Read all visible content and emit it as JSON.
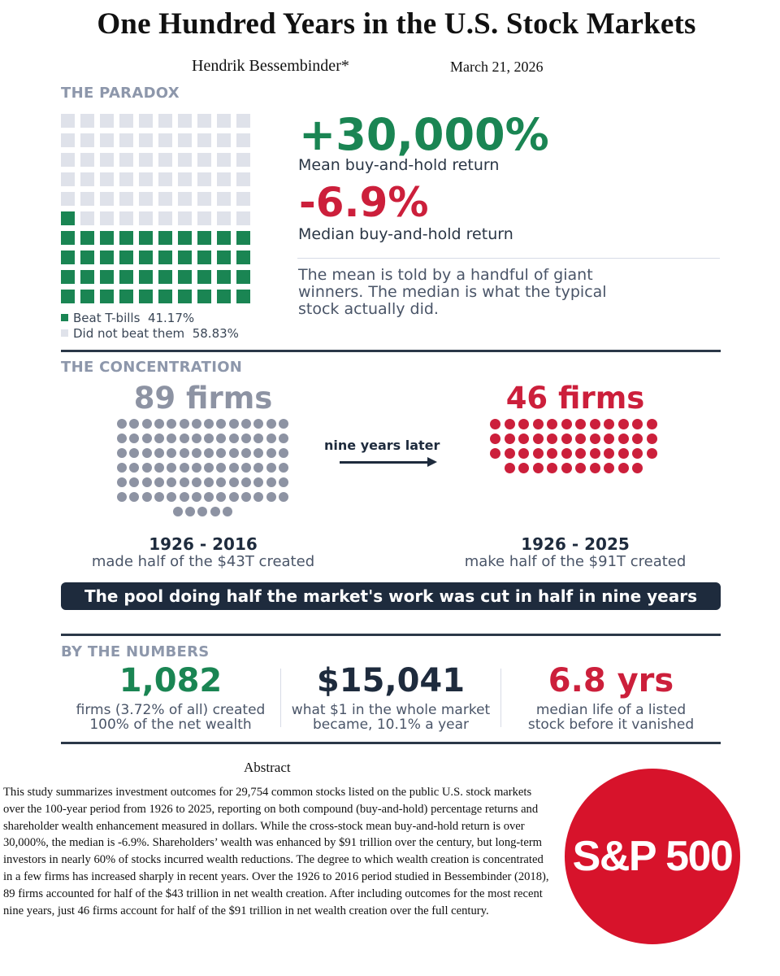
{
  "header": {
    "title": "One Hundred Years in the U.S. Stock Markets",
    "author": "Hendrik Bessembinder*",
    "date": "March 21, 2026"
  },
  "paradox": {
    "section_label": "THE PARADOX",
    "waffle": {
      "total_cells": 100,
      "filled_cells": 41,
      "filled_color": "#1a8553",
      "empty_color": "#dfe2ea"
    },
    "legend": [
      {
        "label": "Beat T-bills",
        "value": "41.17%",
        "color": "#1a8553"
      },
      {
        "label": "Did not beat them",
        "value": "58.83%",
        "color": "#dfe2ea"
      }
    ],
    "mean_value": "+30,000%",
    "mean_label": "Mean buy-and-hold return",
    "median_value": "-6.9%",
    "median_label": "Median buy-and-hold return",
    "note": "The mean is told by a handful of giant winners. The median is what the typical stock actually did."
  },
  "concentration": {
    "section_label": "THE CONCENTRATION",
    "left": {
      "title": "89 firms",
      "dot_count": 89,
      "color": "#8d93a3",
      "period": "1926 - 2016",
      "caption": "made half of the $43T created"
    },
    "arrow_label": "nine years later",
    "right": {
      "title": "46 firms",
      "dot_count": 46,
      "color": "#cc1f3b",
      "period": "1926 - 2025",
      "caption": "make half of the $91T created"
    },
    "banner": "The pool doing half the market's work was cut in half in nine years"
  },
  "numbers": {
    "section_label": "BY THE NUMBERS",
    "items": [
      {
        "value": "1,082",
        "line1": "firms (3.72% of all) created",
        "line2": "100% of the net wealth",
        "color": "#1a8553"
      },
      {
        "value": "$15,041",
        "line1": "what $1 in the whole market",
        "line2": "became, 10.1% a year",
        "color": "#1e2b3d"
      },
      {
        "value": "6.8 yrs",
        "line1": "median life of a listed",
        "line2": "stock before it vanished",
        "color": "#cc1f3b"
      }
    ]
  },
  "abstract": {
    "heading": "Abstract",
    "text": "This study summarizes investment outcomes for 29,754 common stocks listed on the public U.S. stock markets over the 100-year period from 1926 to 2025, reporting on both compound (buy-and-hold) percentage returns and shareholder wealth enhancement measured in dollars.  While the cross-stock mean buy-and-hold return is over 30,000%, the median is -6.9%.  Shareholders’ wealth was enhanced by $91 trillion over the century, but long-term investors in nearly 60% of stocks incurred wealth reductions.  The degree to which wealth creation is concentrated in a few firms has increased sharply in recent years.  Over the 1926 to 2016 period studied in Bessembinder (2018), 89 firms accounted for half of the $43 trillion in net wealth creation.  After including outcomes for the most recent nine years, just 46 firms account for half of the $91 trillion in net wealth creation over the full century."
  },
  "logo": {
    "text": "S&P 500",
    "color": "#d7132b"
  }
}
